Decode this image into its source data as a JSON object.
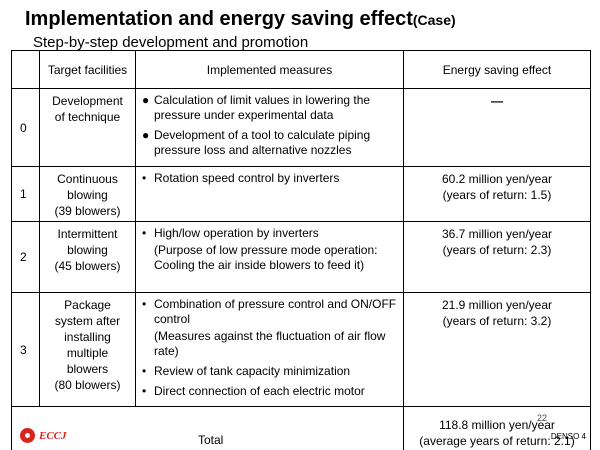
{
  "title": {
    "main": "Implementation and energy saving effect",
    "tag": "(Case)"
  },
  "subtitle": "Step-by-step development and promotion",
  "table": {
    "headers": [
      "",
      "Target facilities",
      "Implemented measures",
      "Energy saving effect"
    ],
    "rows": [
      {
        "no": "0",
        "facility": [
          "Development",
          "of technique"
        ],
        "measures": [
          {
            "marker": "●",
            "text": "Calculation of limit values in lowering the pressure under experimental data"
          },
          {
            "marker": "●",
            "text": "Development of a tool to calculate piping pressure loss and alternative nozzles"
          }
        ],
        "effect": [
          "—"
        ]
      },
      {
        "no": "1",
        "facility": [
          "Continuous",
          "blowing",
          "(39 blowers)"
        ],
        "measures": [
          {
            "marker": "•",
            "text": "Rotation speed control by inverters"
          }
        ],
        "effect": [
          "60.2 million yen/year",
          "(years of return: 1.5)"
        ]
      },
      {
        "no": "2",
        "facility": [
          "Intermittent",
          "blowing",
          "(45 blowers)"
        ],
        "measures": [
          {
            "marker": "•",
            "text": "High/low operation by inverters",
            "note": "(Purpose of low pressure mode operation: Cooling the air inside blowers to feed it)"
          }
        ],
        "effect": [
          "36.7 million yen/year",
          "(years of return: 2.3)"
        ]
      },
      {
        "no": "3",
        "facility": [
          "Package",
          "system after",
          "installing",
          "multiple",
          "blowers",
          "(80 blowers)"
        ],
        "measures": [
          {
            "marker": "•",
            "text": "Combination of pressure control and ON/OFF control",
            "note": " (Measures against the fluctuation of air flow rate)"
          },
          {
            "marker": "•",
            "text": "Review of tank capacity minimization"
          },
          {
            "marker": "•",
            "text": "Direct connection of each electric motor"
          }
        ],
        "effect": [
          "21.9 million yen/year",
          "(years of return: 3.2)"
        ]
      }
    ],
    "total": {
      "label": "Total",
      "effect": [
        "118.8 million yen/year",
        "(average years of return: 2.1)"
      ]
    }
  },
  "footer": {
    "logo_text": "ECCJ",
    "logo_color": "#d9231d",
    "page_number": "22",
    "company": "DENSO 4"
  }
}
